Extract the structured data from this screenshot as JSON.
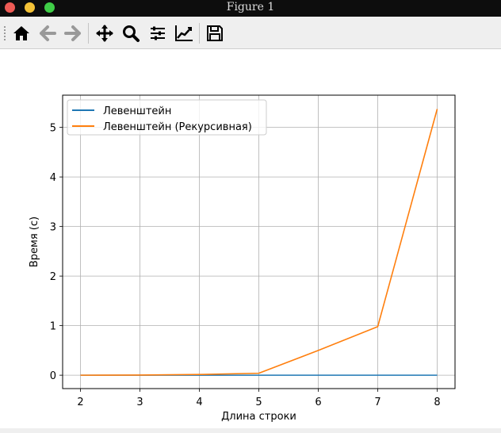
{
  "window": {
    "title": "Figure 1"
  },
  "toolbar": {
    "buttons": [
      {
        "name": "home-button",
        "icon": "home-icon"
      },
      {
        "name": "back-button",
        "icon": "arrow-left-icon"
      },
      {
        "name": "forward-button",
        "icon": "arrow-right-icon"
      },
      {
        "name": "pan-button",
        "icon": "move-icon"
      },
      {
        "name": "zoom-button",
        "icon": "magnifier-icon"
      },
      {
        "name": "subplots-button",
        "icon": "sliders-icon"
      },
      {
        "name": "edit-axes-button",
        "icon": "line-chart-icon"
      },
      {
        "name": "save-button",
        "icon": "floppy-disk-icon"
      }
    ]
  },
  "chart_data": {
    "type": "line",
    "title": "",
    "xlabel": "Длина строки",
    "ylabel": "Время (с)",
    "xlim": [
      1.7,
      8.3
    ],
    "ylim": [
      -0.27,
      5.65
    ],
    "xticks": [
      2,
      3,
      4,
      5,
      6,
      7,
      8
    ],
    "yticks": [
      0,
      1,
      2,
      3,
      4,
      5
    ],
    "grid": true,
    "legend_position": "top-left",
    "x": [
      2,
      3,
      4,
      5,
      6,
      7,
      8
    ],
    "series": [
      {
        "name": "Левенштейн",
        "color": "#1f77b4",
        "values": [
          0.0,
          0.0,
          0.0,
          0.0,
          0.0,
          0.0,
          0.0
        ]
      },
      {
        "name": "Левенштейн (Рекурсивная)",
        "color": "#ff7f0e",
        "values": [
          0.0,
          0.003,
          0.015,
          0.04,
          0.5,
          0.98,
          5.37
        ]
      }
    ]
  }
}
